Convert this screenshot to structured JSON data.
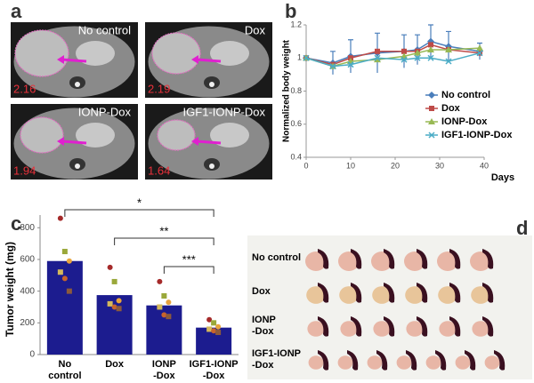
{
  "panel_labels": [
    "a",
    "b",
    "c",
    "d"
  ],
  "mri_images": [
    {
      "label": "No control",
      "value": 2.16
    },
    {
      "label": "Dox",
      "value": 2.19
    },
    {
      "label": "IONP-Dox",
      "value": 1.94
    },
    {
      "label": "IGF1-IONP-Dox",
      "value": 1.64
    }
  ],
  "photo_rows": [
    "No control",
    "Dox",
    "IONP\n-Dox",
    "IGF1-IONP\n-Dox"
  ],
  "chart_data": [
    {
      "type": "line",
      "xlabel": "Days",
      "ylabel": "Normalized body weight",
      "x": [
        0,
        6,
        10,
        16,
        22,
        25,
        28,
        32,
        39
      ],
      "xlim": [
        0,
        40
      ],
      "xticks": [
        0,
        10,
        20,
        30,
        40
      ],
      "ylim": [
        0.4,
        1.2
      ],
      "yticks": [
        0.4,
        0.6,
        0.8,
        1,
        1.2
      ],
      "legend": "lower-right",
      "series": [
        {
          "name": "No control",
          "color": "#4a7ebb",
          "marker": "diamond",
          "values": [
            1,
            0.97,
            1.01,
            1.03,
            1.04,
            1.05,
            1.1,
            1.07,
            1.04
          ],
          "errors": [
            0.01,
            0.07,
            0.1,
            0.12,
            0.1,
            0.09,
            0.1,
            0.09,
            0.05
          ]
        },
        {
          "name": "Dox",
          "color": "#be4b48",
          "marker": "square",
          "values": [
            1,
            0.96,
            1.0,
            1.04,
            1.04,
            1.04,
            1.08,
            1.05,
            1.03
          ]
        },
        {
          "name": "IONP-Dox",
          "color": "#98b954",
          "marker": "triangle",
          "values": [
            1,
            0.95,
            0.98,
            0.99,
            1.01,
            1.03,
            1.05,
            1.05,
            1.06
          ]
        },
        {
          "name": "IGF1-IONP-Dox",
          "color": "#4bacc6",
          "marker": "x",
          "values": [
            1,
            0.95,
            0.96,
            1.0,
            0.99,
            1.0,
            1.0,
            0.98,
            1.03
          ]
        }
      ]
    },
    {
      "type": "bar",
      "ylabel": "Tumor weight (mg)",
      "categories": [
        "No\ncontrol",
        "Dox",
        "IONP\n-Dox",
        "IGF1-IONP\n-Dox"
      ],
      "values": [
        590,
        375,
        310,
        170
      ],
      "color": "#1c1c8f",
      "points": [
        [
          860,
          650,
          590,
          520,
          480,
          400
        ],
        [
          550,
          460,
          340,
          320,
          300,
          290
        ],
        [
          460,
          370,
          330,
          300,
          250,
          240
        ],
        [
          220,
          200,
          175,
          160,
          150,
          140
        ]
      ],
      "point_colors": [
        "#a52a2a",
        "#9aa83a",
        "#e8a33c",
        "#d4b85c",
        "#c8642c",
        "#8c5a3c"
      ],
      "ylim": [
        0,
        880
      ],
      "yticks": [
        0,
        200,
        400,
        600,
        800
      ],
      "annotations": [
        "*",
        "**",
        "***"
      ]
    }
  ]
}
